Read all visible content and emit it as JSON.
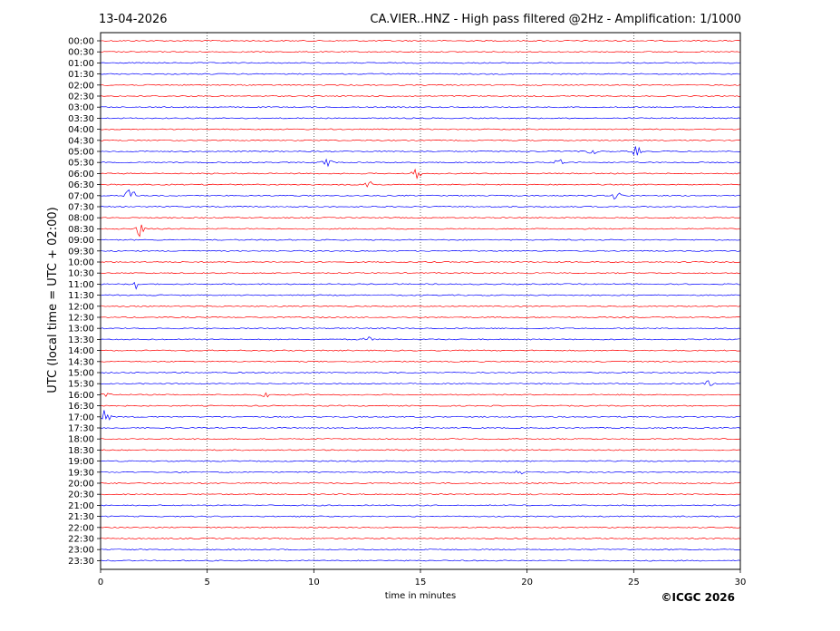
{
  "header": {
    "date": "13-04-2026",
    "title": "CA.VIER..HNZ - High pass filtered @2Hz - Amplification: 1/1000"
  },
  "footer": {
    "copyright": "©ICGC 2026"
  },
  "chart_data": {
    "type": "line",
    "subtype": "seismogram helicorder",
    "xlabel": "time in minutes",
    "ylabel": "UTC (local time = UTC + 02:00)",
    "xlim": [
      0,
      30
    ],
    "x_ticks": [
      0,
      5,
      10,
      15,
      20,
      25,
      30
    ],
    "vertical_grid_minutes": [
      5,
      10,
      15,
      20,
      25
    ],
    "grid_style": "dotted vertical lines",
    "colors": {
      "red_trace": "#ff0000",
      "blue_trace": "#0000ff",
      "grid": "#000000"
    },
    "row_color_pattern": "alternating red/blue per row pair",
    "rows": [
      "00:00",
      "00:30",
      "01:00",
      "01:30",
      "02:00",
      "02:30",
      "03:00",
      "03:30",
      "04:00",
      "04:30",
      "05:00",
      "05:30",
      "06:00",
      "06:30",
      "07:00",
      "07:30",
      "08:00",
      "08:30",
      "09:00",
      "09:30",
      "10:00",
      "10:30",
      "11:00",
      "11:30",
      "12:00",
      "12:30",
      "13:00",
      "13:30",
      "14:00",
      "14:30",
      "15:00",
      "15:30",
      "16:00",
      "16:30",
      "17:00",
      "17:30",
      "18:00",
      "18:30",
      "19:00",
      "19:30",
      "20:00",
      "20:30",
      "21:00",
      "21:30",
      "22:00",
      "22:30",
      "23:00",
      "23:30"
    ],
    "events": [
      {
        "row": "05:00",
        "minute": 23.0,
        "amplitude": 0.35
      },
      {
        "row": "05:00",
        "minute": 25.1,
        "amplitude": 0.45
      },
      {
        "row": "05:30",
        "minute": 10.6,
        "amplitude": 0.5
      },
      {
        "row": "05:30",
        "minute": 21.5,
        "amplitude": 0.4
      },
      {
        "row": "06:00",
        "minute": 14.8,
        "amplitude": 0.45
      },
      {
        "row": "06:30",
        "minute": 12.6,
        "amplitude": 0.35
      },
      {
        "row": "07:00",
        "minute": 1.4,
        "amplitude": 0.6
      },
      {
        "row": "07:00",
        "minute": 24.2,
        "amplitude": 0.4
      },
      {
        "row": "08:30",
        "minute": 1.9,
        "amplitude": 0.8
      },
      {
        "row": "11:00",
        "minute": 1.7,
        "amplitude": 0.45
      },
      {
        "row": "13:30",
        "minute": 12.5,
        "amplitude": 0.3
      },
      {
        "row": "15:30",
        "minute": 28.5,
        "amplitude": 0.3
      },
      {
        "row": "16:00",
        "minute": 0.3,
        "amplitude": 0.35
      },
      {
        "row": "16:00",
        "minute": 7.8,
        "amplitude": 0.3
      },
      {
        "row": "17:00",
        "minute": 0.2,
        "amplitude": 0.55
      },
      {
        "row": "19:30",
        "minute": 19.6,
        "amplitude": 0.3
      }
    ]
  }
}
